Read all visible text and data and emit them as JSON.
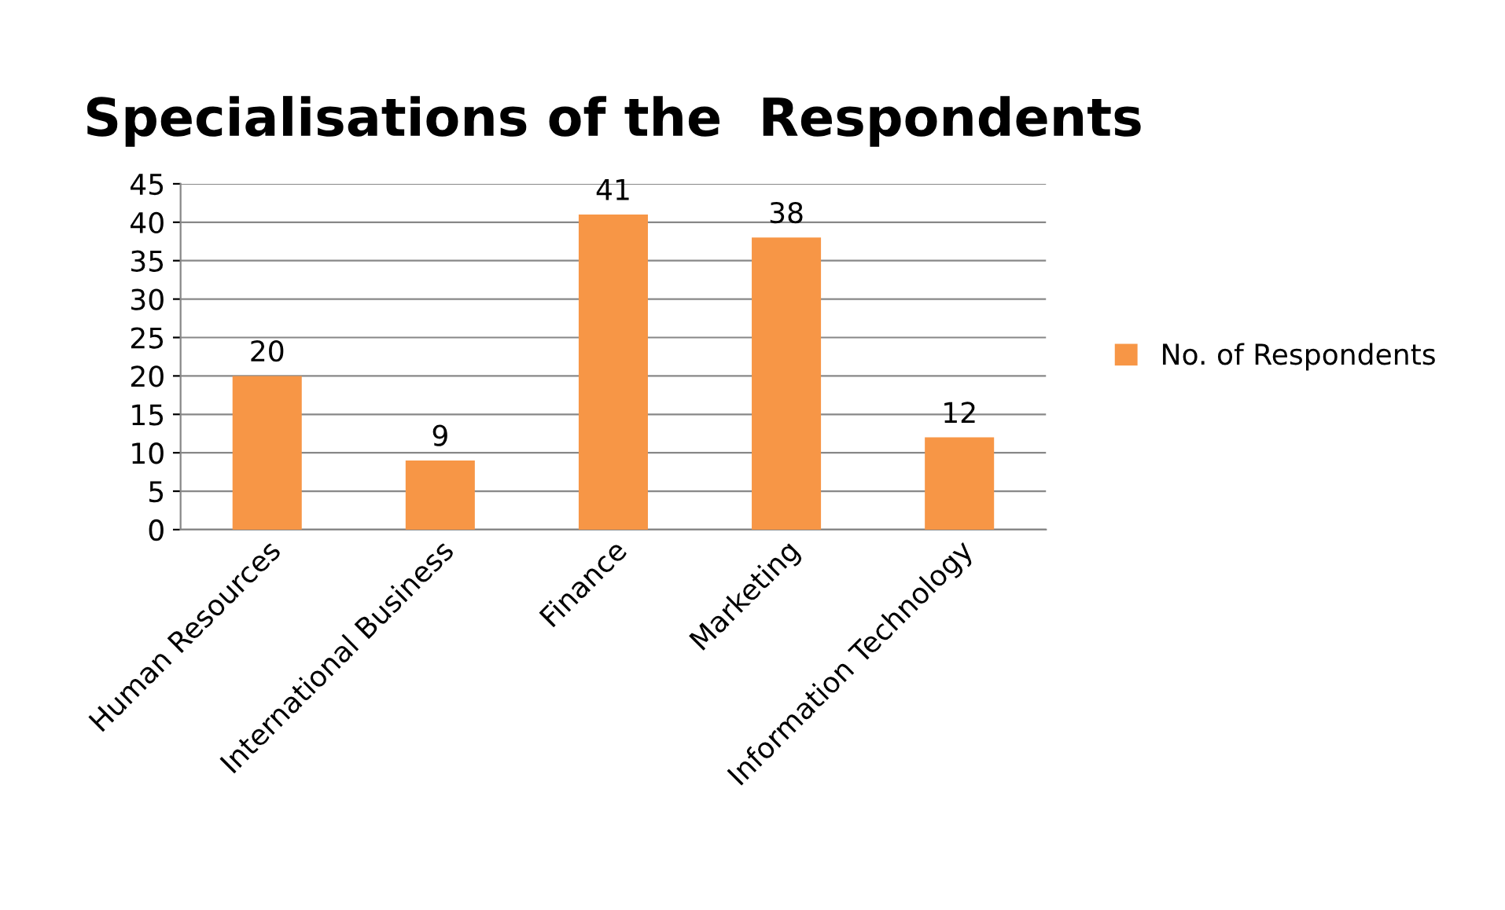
{
  "chart_data": {
    "type": "bar",
    "title": "Specialisations of the  Respondents",
    "categories": [
      "Human Resources",
      "International Business",
      "Finance",
      "Marketing",
      "Information Technology"
    ],
    "series": [
      {
        "name": "No. of Respondents",
        "color": "#f79646",
        "values": [
          20,
          9,
          41,
          38,
          12
        ]
      }
    ],
    "ylim": [
      0,
      45
    ],
    "yticks": [
      0,
      5,
      10,
      15,
      20,
      25,
      30,
      35,
      40,
      45
    ],
    "grid": "y",
    "legend": "right",
    "data_labels": true
  }
}
